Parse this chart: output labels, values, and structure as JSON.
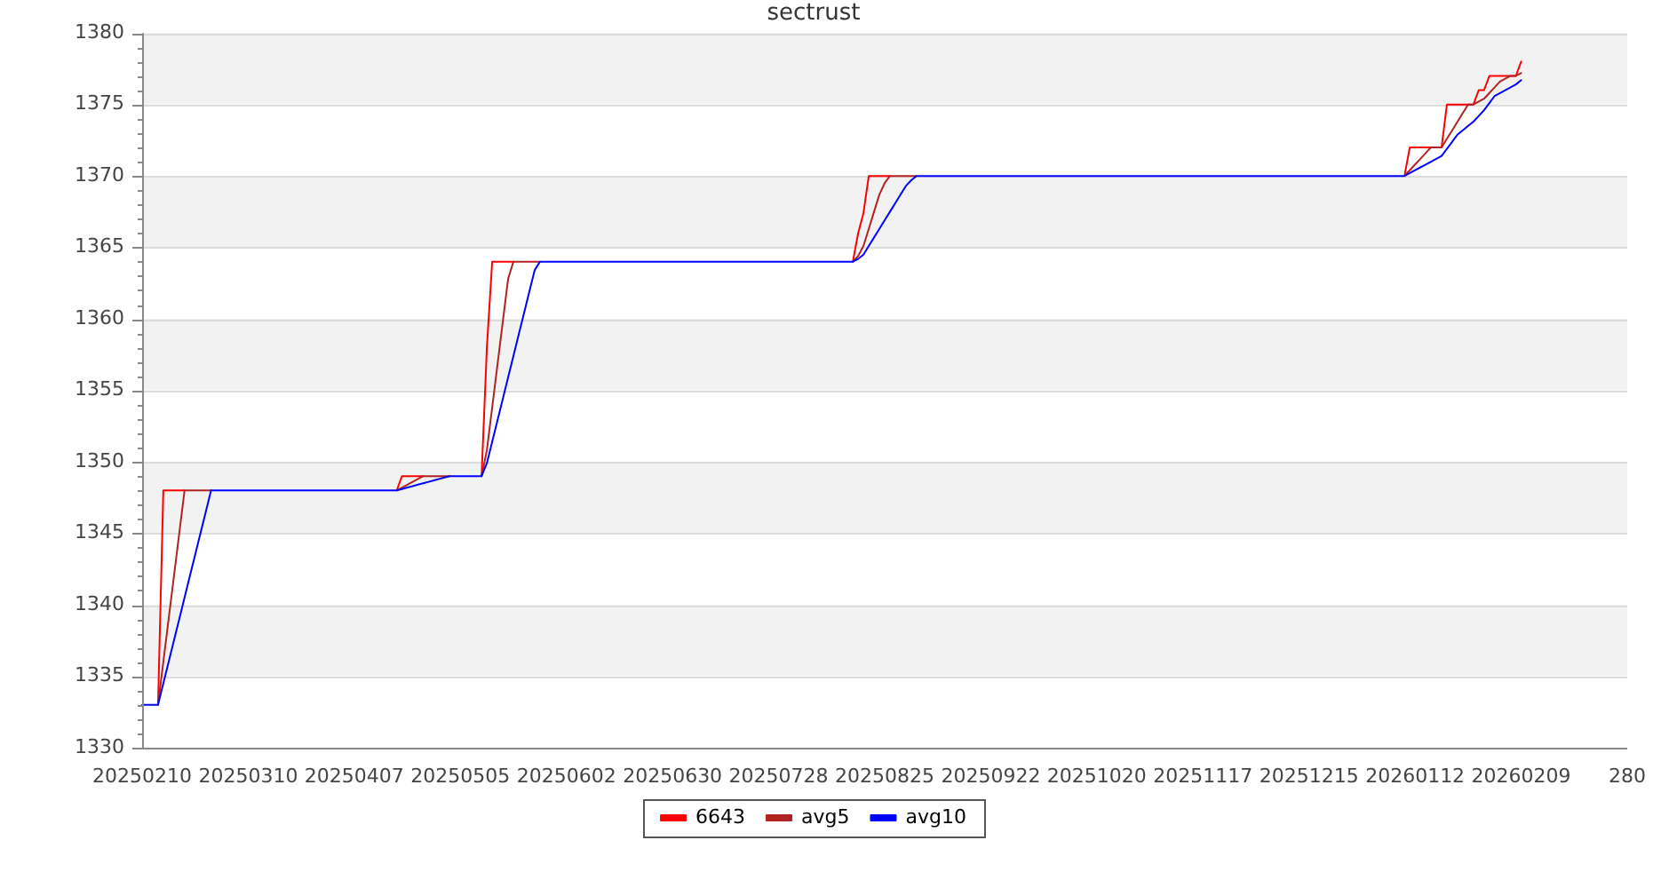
{
  "chart_data": {
    "type": "line",
    "title": "sectrust",
    "categories": [
      "20250210",
      null,
      null,
      null,
      null,
      null,
      null,
      null,
      null,
      null,
      null,
      null,
      null,
      null,
      null,
      null,
      null,
      null,
      null,
      null,
      "20250310",
      null,
      null,
      null,
      null,
      null,
      null,
      null,
      null,
      null,
      null,
      null,
      null,
      null,
      null,
      null,
      null,
      null,
      null,
      null,
      "20250407",
      null,
      null,
      null,
      null,
      null,
      null,
      null,
      null,
      null,
      null,
      null,
      null,
      null,
      null,
      null,
      null,
      null,
      null,
      null,
      "20250505",
      null,
      null,
      null,
      null,
      null,
      null,
      null,
      null,
      null,
      null,
      null,
      null,
      null,
      null,
      null,
      null,
      null,
      null,
      null,
      "20250602",
      null,
      null,
      null,
      null,
      null,
      null,
      null,
      null,
      null,
      null,
      null,
      null,
      null,
      null,
      null,
      null,
      null,
      null,
      null,
      "20250630",
      null,
      null,
      null,
      null,
      null,
      null,
      null,
      null,
      null,
      null,
      null,
      null,
      null,
      null,
      null,
      null,
      null,
      null,
      null,
      "20250728",
      null,
      null,
      null,
      null,
      null,
      null,
      null,
      null,
      null,
      null,
      null,
      null,
      null,
      null,
      null,
      null,
      null,
      null,
      null,
      "20250825",
      null,
      null,
      null,
      null,
      null,
      null,
      null,
      null,
      null,
      null,
      null,
      null,
      null,
      null,
      null,
      null,
      null,
      null,
      null,
      "20250922",
      null,
      null,
      null,
      null,
      null,
      null,
      null,
      null,
      null,
      null,
      null,
      null,
      null,
      null,
      null,
      null,
      null,
      null,
      null,
      "20251020",
      null,
      null,
      null,
      null,
      null,
      null,
      null,
      null,
      null,
      null,
      null,
      null,
      null,
      null,
      null,
      null,
      null,
      null,
      null,
      "20251117",
      null,
      null,
      null,
      null,
      null,
      null,
      null,
      null,
      null,
      null,
      null,
      null,
      null,
      null,
      null,
      null,
      null,
      null,
      null,
      "20251215",
      null,
      null,
      null,
      null,
      null,
      null,
      null,
      null,
      null,
      null,
      null,
      null,
      null,
      null,
      null,
      null,
      null,
      null,
      null,
      "20260112",
      null,
      null,
      null,
      null,
      null,
      null,
      null,
      null,
      null,
      null,
      null,
      null,
      null,
      null,
      null,
      null,
      null,
      null,
      null,
      "20260209",
      null,
      null,
      null,
      null,
      null,
      null,
      null,
      null,
      null,
      null,
      null,
      null,
      null,
      null,
      null,
      null,
      null,
      null,
      null,
      "280"
    ],
    "ylim": [
      1330,
      1380
    ],
    "yticks": [
      1330,
      {
        "value": 1331,
        "label": null
      },
      {
        "value": 1332,
        "label": null
      },
      {
        "value": 1333,
        "label": null
      },
      {
        "value": 1334,
        "label": null
      },
      1335,
      {
        "value": 1336,
        "label": null
      },
      {
        "value": 1337,
        "label": null
      },
      {
        "value": 1338,
        "label": null
      },
      {
        "value": 1339,
        "label": null
      },
      1340,
      {
        "value": 1341,
        "label": null
      },
      {
        "value": 1342,
        "label": null
      },
      {
        "value": 1343,
        "label": null
      },
      {
        "value": 1344,
        "label": null
      },
      1345,
      {
        "value": 1346,
        "label": null
      },
      {
        "value": 1347,
        "label": null
      },
      {
        "value": 1348,
        "label": null
      },
      {
        "value": 1349,
        "label": null
      },
      1350,
      {
        "value": 1351,
        "label": null
      },
      {
        "value": 1352,
        "label": null
      },
      {
        "value": 1353,
        "label": null
      },
      {
        "value": 1354,
        "label": null
      },
      1355,
      {
        "value": 1356,
        "label": null
      },
      {
        "value": 1357,
        "label": null
      },
      {
        "value": 1358,
        "label": null
      },
      {
        "value": 1359,
        "label": null
      },
      1360,
      {
        "value": 1361,
        "label": null
      },
      {
        "value": 1362,
        "label": null
      },
      {
        "value": 1363,
        "label": null
      },
      {
        "value": 1364,
        "label": null
      },
      1365,
      {
        "value": 1366,
        "label": null
      },
      {
        "value": 1367,
        "label": null
      },
      {
        "value": 1368,
        "label": null
      },
      {
        "value": 1369,
        "label": null
      },
      1370,
      {
        "value": 1371,
        "label": null
      },
      {
        "value": 1372,
        "label": null
      },
      {
        "value": 1373,
        "label": null
      },
      {
        "value": 1374,
        "label": null
      },
      1375,
      {
        "value": 1376,
        "label": null
      },
      {
        "value": 1377,
        "label": null
      },
      {
        "value": 1378,
        "label": null
      },
      {
        "value": 1379,
        "label": null
      },
      1380
    ],
    "grid": "y",
    "legend": "bottom",
    "marker": "none",
    "series": [
      {
        "name": "6643",
        "color": "#ff0000",
        "values": [
          null,
          null,
          null,
          1333,
          1348,
          1348,
          1348,
          1348,
          1348,
          null,
          null,
          null,
          null,
          null,
          null,
          null,
          null,
          null,
          null,
          null,
          null,
          null,
          null,
          null,
          null,
          null,
          null,
          null,
          null,
          null,
          null,
          null,
          null,
          null,
          null,
          null,
          null,
          null,
          null,
          null,
          null,
          null,
          null,
          null,
          null,
          null,
          null,
          null,
          1348,
          1349,
          1349,
          1349,
          1349,
          1349,
          null,
          null,
          null,
          null,
          null,
          null,
          null,
          null,
          null,
          null,
          1349,
          1358,
          1364,
          1364,
          1364,
          1364,
          1364,
          null,
          null,
          null,
          null,
          null,
          null,
          null,
          null,
          null,
          null,
          null,
          null,
          null,
          null,
          null,
          null,
          null,
          null,
          null,
          null,
          null,
          null,
          null,
          null,
          null,
          null,
          null,
          null,
          null,
          null,
          null,
          null,
          null,
          null,
          null,
          null,
          null,
          null,
          null,
          null,
          null,
          null,
          null,
          null,
          null,
          null,
          null,
          null,
          null,
          null,
          null,
          null,
          null,
          null,
          null,
          null,
          null,
          null,
          null,
          null,
          null,
          null,
          null,
          1364,
          1366,
          1367.4,
          1370,
          1370,
          1370,
          1370,
          1370,
          null,
          null,
          null,
          null,
          null,
          null,
          null,
          null,
          null,
          null,
          null,
          null,
          null,
          null,
          null,
          null,
          null,
          null,
          null,
          null,
          null,
          null,
          null,
          null,
          null,
          null,
          null,
          null,
          null,
          null,
          null,
          null,
          null,
          null,
          null,
          null,
          null,
          null,
          null,
          null,
          null,
          null,
          null,
          null,
          null,
          null,
          null,
          null,
          null,
          null,
          null,
          null,
          null,
          null,
          null,
          null,
          null,
          null,
          null,
          null,
          null,
          null,
          null,
          null,
          null,
          null,
          null,
          null,
          null,
          null,
          null,
          null,
          null,
          null,
          null,
          null,
          null,
          null,
          null,
          null,
          null,
          null,
          null,
          null,
          null,
          null,
          null,
          null,
          null,
          null,
          null,
          null,
          null,
          null,
          null,
          null,
          1370,
          1372,
          1372,
          1372,
          1372,
          1372,
          null,
          1372,
          1375,
          1375,
          1375,
          1375,
          1375,
          1375,
          1376,
          1376,
          1377,
          1377,
          1377,
          1377,
          1377,
          1377,
          1378,
          null,
          null,
          null,
          null,
          null,
          null,
          null,
          null,
          null,
          null,
          null,
          null,
          null,
          null,
          null,
          null,
          null,
          null,
          null,
          null
        ]
      },
      {
        "name": "avg5",
        "color": "#b22222",
        "values": [
          null,
          null,
          null,
          1333,
          1336,
          1339,
          1342,
          1345,
          1348,
          1348,
          1348,
          1348,
          1348,
          1348,
          null,
          null,
          null,
          null,
          null,
          null,
          null,
          null,
          null,
          null,
          null,
          null,
          null,
          null,
          null,
          null,
          null,
          null,
          null,
          null,
          null,
          null,
          null,
          null,
          null,
          null,
          null,
          null,
          null,
          null,
          null,
          null,
          null,
          null,
          1348,
          1348.2,
          1348.4,
          1348.6,
          1348.8,
          1349,
          1349,
          1349,
          1349,
          1349,
          1349,
          null,
          null,
          null,
          null,
          null,
          1349,
          1350.8,
          1353.8,
          1356.8,
          1359.8,
          1362.8,
          1364,
          1364,
          1364,
          1364,
          1364,
          1364,
          null,
          null,
          null,
          null,
          null,
          null,
          null,
          null,
          null,
          null,
          null,
          null,
          null,
          null,
          null,
          null,
          null,
          null,
          null,
          null,
          null,
          null,
          null,
          null,
          null,
          null,
          null,
          null,
          null,
          null,
          null,
          null,
          null,
          null,
          null,
          null,
          null,
          null,
          null,
          null,
          null,
          null,
          null,
          null,
          null,
          null,
          null,
          null,
          null,
          null,
          null,
          null,
          null,
          null,
          null,
          null,
          null,
          null,
          1364,
          1364.4,
          1365.1,
          1366.3,
          1367.5,
          1368.7,
          1369.5,
          1370,
          1370,
          1370,
          1370,
          1370,
          1370,
          null,
          null,
          null,
          null,
          null,
          null,
          null,
          null,
          null,
          null,
          null,
          null,
          null,
          null,
          null,
          null,
          null,
          null,
          null,
          null,
          null,
          null,
          null,
          null,
          null,
          null,
          null,
          null,
          null,
          null,
          null,
          null,
          null,
          null,
          null,
          null,
          null,
          null,
          null,
          null,
          null,
          null,
          null,
          null,
          null,
          null,
          null,
          null,
          null,
          null,
          null,
          null,
          null,
          null,
          null,
          null,
          null,
          null,
          null,
          null,
          null,
          null,
          null,
          null,
          null,
          null,
          null,
          null,
          null,
          null,
          null,
          null,
          null,
          null,
          null,
          null,
          null,
          null,
          null,
          null,
          null,
          null,
          null,
          null,
          null,
          null,
          null,
          null,
          null,
          null,
          null,
          1370,
          1370.4,
          1370.8,
          1371.2,
          1371.6,
          1372,
          1372,
          1372,
          1372.6,
          1373.2,
          1373.8,
          1374.4,
          1375,
          1375,
          1375.2,
          1375.4,
          1375.8,
          1376.2,
          1376.6,
          1376.8,
          1377,
          1377,
          1377.2,
          null,
          null,
          null,
          null,
          null,
          null,
          null,
          null,
          null,
          null,
          null,
          null,
          null,
          null,
          null,
          null,
          null,
          null,
          null,
          null
        ]
      },
      {
        "name": "avg10",
        "color": "#0000ff",
        "values": [
          1333,
          1333,
          1333,
          1333,
          1334.5,
          1336,
          1337.5,
          1339,
          1340.5,
          1342,
          1343.5,
          1345,
          1346.5,
          1348,
          1348,
          1348,
          1348,
          1348,
          1348,
          1348,
          1348,
          1348,
          1348,
          1348,
          1348,
          1348,
          1348,
          1348,
          1348,
          1348,
          1348,
          1348,
          1348,
          1348,
          1348,
          1348,
          1348,
          1348,
          1348,
          1348,
          1348,
          1348,
          1348,
          1348,
          1348,
          1348,
          1348,
          1348,
          1348,
          1348.1,
          1348.2,
          1348.3,
          1348.4,
          1348.5,
          1348.6,
          1348.7,
          1348.8,
          1348.9,
          1349,
          1349,
          1349,
          1349,
          1349,
          1349,
          1349,
          1349.9,
          1351.4,
          1352.9,
          1354.4,
          1355.9,
          1357.4,
          1358.9,
          1360.4,
          1361.9,
          1363.4,
          1364,
          1364,
          1364,
          1364,
          1364,
          1364,
          1364,
          1364,
          1364,
          1364,
          1364,
          1364,
          1364,
          1364,
          1364,
          1364,
          1364,
          1364,
          1364,
          1364,
          1364,
          1364,
          1364,
          1364,
          1364,
          1364,
          1364,
          1364,
          1364,
          1364,
          1364,
          1364,
          1364,
          1364,
          1364,
          1364,
          1364,
          1364,
          1364,
          1364,
          1364,
          1364,
          1364,
          1364,
          1364,
          1364,
          1364,
          1364,
          1364,
          1364,
          1364,
          1364,
          1364,
          1364,
          1364,
          1364,
          1364,
          1364,
          1364,
          1364,
          1364.2,
          1364.5,
          1365.1,
          1365.7,
          1366.3,
          1366.9,
          1367.5,
          1368.1,
          1368.7,
          1369.3,
          1369.7,
          1370,
          1370,
          1370,
          1370,
          1370,
          1370,
          1370,
          1370,
          1370,
          1370,
          1370,
          1370,
          1370,
          1370,
          1370,
          1370,
          1370,
          1370,
          1370,
          1370,
          1370,
          1370,
          1370,
          1370,
          1370,
          1370,
          1370,
          1370,
          1370,
          1370,
          1370,
          1370,
          1370,
          1370,
          1370,
          1370,
          1370,
          1370,
          1370,
          1370,
          1370,
          1370,
          1370,
          1370,
          1370,
          1370,
          1370,
          1370,
          1370,
          1370,
          1370,
          1370,
          1370,
          1370,
          1370,
          1370,
          1370,
          1370,
          1370,
          1370,
          1370,
          1370,
          1370,
          1370,
          1370,
          1370,
          1370,
          1370,
          1370,
          1370,
          1370,
          1370,
          1370,
          1370,
          1370,
          1370,
          1370,
          1370,
          1370,
          1370,
          1370,
          1370,
          1370,
          1370,
          1370,
          1370,
          1370,
          1370,
          1370,
          1370,
          1370,
          1370,
          1370,
          1370.2,
          1370.4,
          1370.6,
          1370.8,
          1371,
          1371.2,
          1371.4,
          1371.9,
          1372.4,
          1372.9,
          1373.2,
          1373.5,
          1373.8,
          1374.2,
          1374.6,
          1375.1,
          1375.6,
          1375.8,
          1376,
          1376.2,
          1376.4,
          1376.7,
          null,
          null,
          null,
          null,
          null,
          null,
          null,
          null,
          null,
          null,
          null,
          null,
          null,
          null,
          null,
          null,
          null,
          null,
          null,
          null
        ]
      }
    ]
  }
}
